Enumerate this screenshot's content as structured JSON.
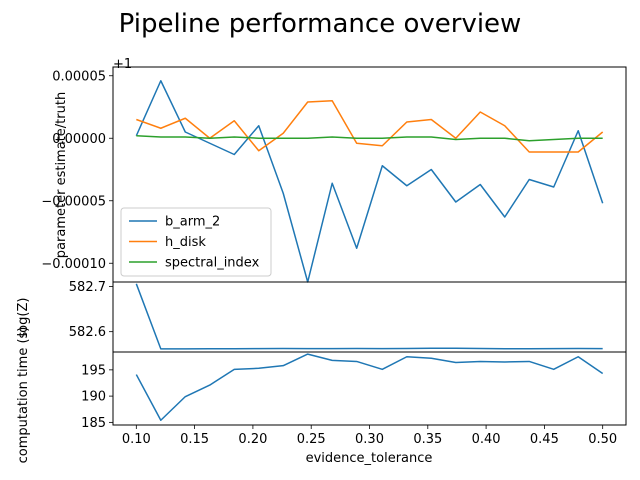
{
  "figure": {
    "title": "Pipeline performance overview"
  },
  "chart_data": [
    {
      "type": "line",
      "panel": "top",
      "ylabel": "parameter estimate/truth",
      "offset_text": "+1",
      "ylim": [
        -0.000115,
        5.7e-05
      ],
      "yticks": [
        5e-05,
        0.0,
        -5e-05,
        -0.0001
      ],
      "ytick_labels": [
        "0.00005",
        "0.00000",
        "−0.00005",
        "−0.00010"
      ],
      "legend": {
        "position": "lower-left",
        "entries": [
          "b_arm_2",
          "h_disk",
          "spectral_index"
        ]
      },
      "x": [
        0.1,
        0.121,
        0.142,
        0.163,
        0.184,
        0.205,
        0.226,
        0.247,
        0.268,
        0.289,
        0.311,
        0.332,
        0.353,
        0.374,
        0.395,
        0.416,
        0.437,
        0.458,
        0.479,
        0.5
      ],
      "series": [
        {
          "name": "b_arm_2",
          "color": "#1f77b4",
          "values": [
            2e-06,
            4.6e-05,
            5e-06,
            -4e-06,
            -1.3e-05,
            1e-05,
            -4.4e-05,
            -0.000115,
            -3.6e-05,
            -8.8e-05,
            -2.2e-05,
            -3.8e-05,
            -2.5e-05,
            -5.1e-05,
            -3.7e-05,
            -6.3e-05,
            -3.3e-05,
            -3.9e-05,
            6e-06,
            -5.2e-05
          ]
        },
        {
          "name": "h_disk",
          "color": "#ff7f0e",
          "values": [
            1.5e-05,
            8e-06,
            1.6e-05,
            0.0,
            1.4e-05,
            -1e-05,
            4e-06,
            2.9e-05,
            3e-05,
            -4e-06,
            -6e-06,
            1.3e-05,
            1.5e-05,
            0.0,
            2.1e-05,
            1e-05,
            -1.1e-05,
            -1.1e-05,
            -1.1e-05,
            5e-06
          ]
        },
        {
          "name": "spectral_index",
          "color": "#2ca02c",
          "values": [
            2e-06,
            1e-06,
            1e-06,
            0.0,
            1e-06,
            0.0,
            0.0,
            0.0,
            1e-06,
            0.0,
            0.0,
            1e-06,
            1e-06,
            -1e-06,
            0.0,
            0.0,
            -2e-06,
            -1e-06,
            0.0,
            0.0
          ]
        }
      ]
    },
    {
      "type": "line",
      "panel": "middle",
      "ylabel": "log(Z)",
      "ylim": [
        582.555,
        582.71
      ],
      "yticks": [
        582.7,
        582.6
      ],
      "ytick_labels": [
        "582.7",
        "582.6"
      ],
      "x": [
        0.1,
        0.121,
        0.142,
        0.163,
        0.184,
        0.205,
        0.226,
        0.247,
        0.268,
        0.289,
        0.311,
        0.332,
        0.353,
        0.374,
        0.395,
        0.416,
        0.437,
        0.458,
        0.479,
        0.5
      ],
      "series": [
        {
          "color": "#1f77b4",
          "values": [
            582.706,
            582.562,
            582.562,
            582.5622,
            582.5622,
            582.5625,
            582.5628,
            582.5625,
            582.5625,
            582.5627,
            582.5625,
            582.5628,
            582.5632,
            582.5633,
            582.5627,
            582.5623,
            582.5623,
            582.5626,
            582.5627,
            582.5625
          ]
        }
      ]
    },
    {
      "type": "line",
      "panel": "bottom",
      "ylabel": "computation time (s)",
      "xlabel": "evidence_tolerance",
      "ylim": [
        184.5,
        198.4
      ],
      "yticks": [
        195,
        190,
        185
      ],
      "ytick_labels": [
        "195",
        "190",
        "185"
      ],
      "xticks": [
        0.1,
        0.15,
        0.2,
        0.25,
        0.3,
        0.35,
        0.4,
        0.45,
        0.5
      ],
      "xtick_labels": [
        "0.10",
        "0.15",
        "0.20",
        "0.25",
        "0.30",
        "0.35",
        "0.40",
        "0.45",
        "0.50"
      ],
      "xlim": [
        0.08,
        0.52
      ],
      "x": [
        0.1,
        0.121,
        0.142,
        0.163,
        0.184,
        0.205,
        0.226,
        0.247,
        0.268,
        0.289,
        0.311,
        0.332,
        0.353,
        0.374,
        0.395,
        0.416,
        0.437,
        0.458,
        0.479,
        0.5
      ],
      "series": [
        {
          "color": "#1f77b4",
          "values": [
            194.1,
            185.4,
            189.9,
            192.1,
            195.1,
            195.3,
            195.8,
            198.0,
            196.8,
            196.6,
            195.1,
            197.5,
            197.2,
            196.4,
            196.6,
            196.5,
            196.6,
            195.1,
            197.5,
            194.3
          ]
        }
      ]
    }
  ]
}
